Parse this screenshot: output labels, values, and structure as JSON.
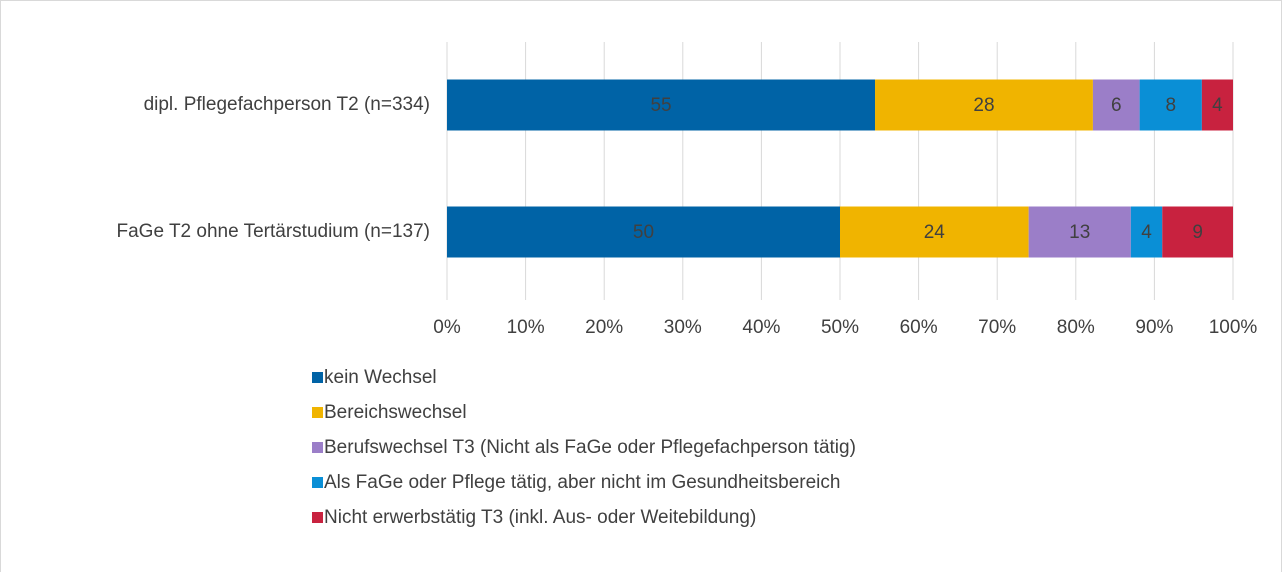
{
  "chart_data": {
    "type": "bar",
    "orientation": "horizontal",
    "stacked": "percent",
    "categories": [
      "dipl. Pflegefachperson T2 (n=334)",
      "FaGe T2 ohne Tertärstudium (n=137)"
    ],
    "series": [
      {
        "name": "kein Wechsel",
        "color": "#0063a6",
        "values": [
          55,
          50
        ]
      },
      {
        "name": "Bereichswechsel",
        "color": "#f0b400",
        "values": [
          28,
          24
        ]
      },
      {
        "name": "Berufswechsel T3 (Nicht als FaGe oder Pflegefachperson tätig)",
        "color": "#9b7ec8",
        "values": [
          6,
          13
        ]
      },
      {
        "name": "Als FaGe oder Pflege tätig, aber nicht im Gesundheitsbereich",
        "color": "#0a8fd6",
        "values": [
          8,
          4
        ]
      },
      {
        "name": "Nicht erwerbstätig T3 (inkl. Aus- oder Weitebildung)",
        "color": "#c8223f",
        "values": [
          4,
          9
        ]
      }
    ],
    "xlim": [
      0,
      100
    ],
    "xticks": [
      {
        "value": 0,
        "label": "0%"
      },
      {
        "value": 10,
        "label": "10%"
      },
      {
        "value": 20,
        "label": "20%"
      },
      {
        "value": 30,
        "label": "30%"
      },
      {
        "value": 40,
        "label": "40%"
      },
      {
        "value": 50,
        "label": "50%"
      },
      {
        "value": 60,
        "label": "60%"
      },
      {
        "value": 70,
        "label": "70%"
      },
      {
        "value": 80,
        "label": "80%"
      },
      {
        "value": 90,
        "label": "90%"
      },
      {
        "value": 100,
        "label": "100%"
      }
    ],
    "grid": true,
    "legend": "bottom"
  }
}
